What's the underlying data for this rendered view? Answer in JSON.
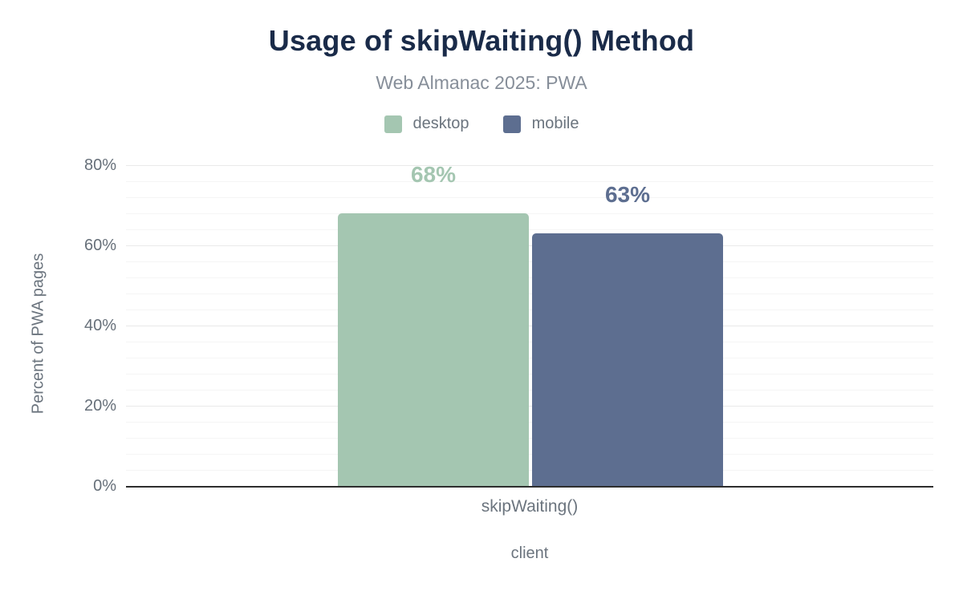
{
  "chart_data": {
    "type": "bar",
    "title": "Usage of skipWaiting() Method",
    "subtitle": "Web Almanac 2025: PWA",
    "categories": [
      "skipWaiting()"
    ],
    "series": [
      {
        "name": "desktop",
        "values": [
          68
        ],
        "labels": [
          "68%"
        ],
        "color": "#a4c6b1"
      },
      {
        "name": "mobile",
        "values": [
          63
        ],
        "labels": [
          "63%"
        ],
        "color": "#5d6e90"
      }
    ],
    "xlabel": "client",
    "ylabel": "Percent of PWA pages",
    "ylim": [
      0,
      80
    ],
    "yticks": [
      {
        "label": "0%",
        "value": 0
      },
      {
        "label": "20%",
        "value": 20
      },
      {
        "label": "40%",
        "value": 40
      },
      {
        "label": "60%",
        "value": 60
      },
      {
        "label": "80%",
        "value": 80
      }
    ],
    "grid": "horizontal",
    "minor_grid_step": 4,
    "major_grid_step": 20,
    "legend_position": "top",
    "colors": {
      "title": "#1a2b49",
      "subtitle": "#868e99",
      "axis_text": "#6b747e",
      "axis_line": "#2d2d2d",
      "grid_major": "#e9e9e9",
      "grid_minor": "#f5f5f5"
    }
  }
}
